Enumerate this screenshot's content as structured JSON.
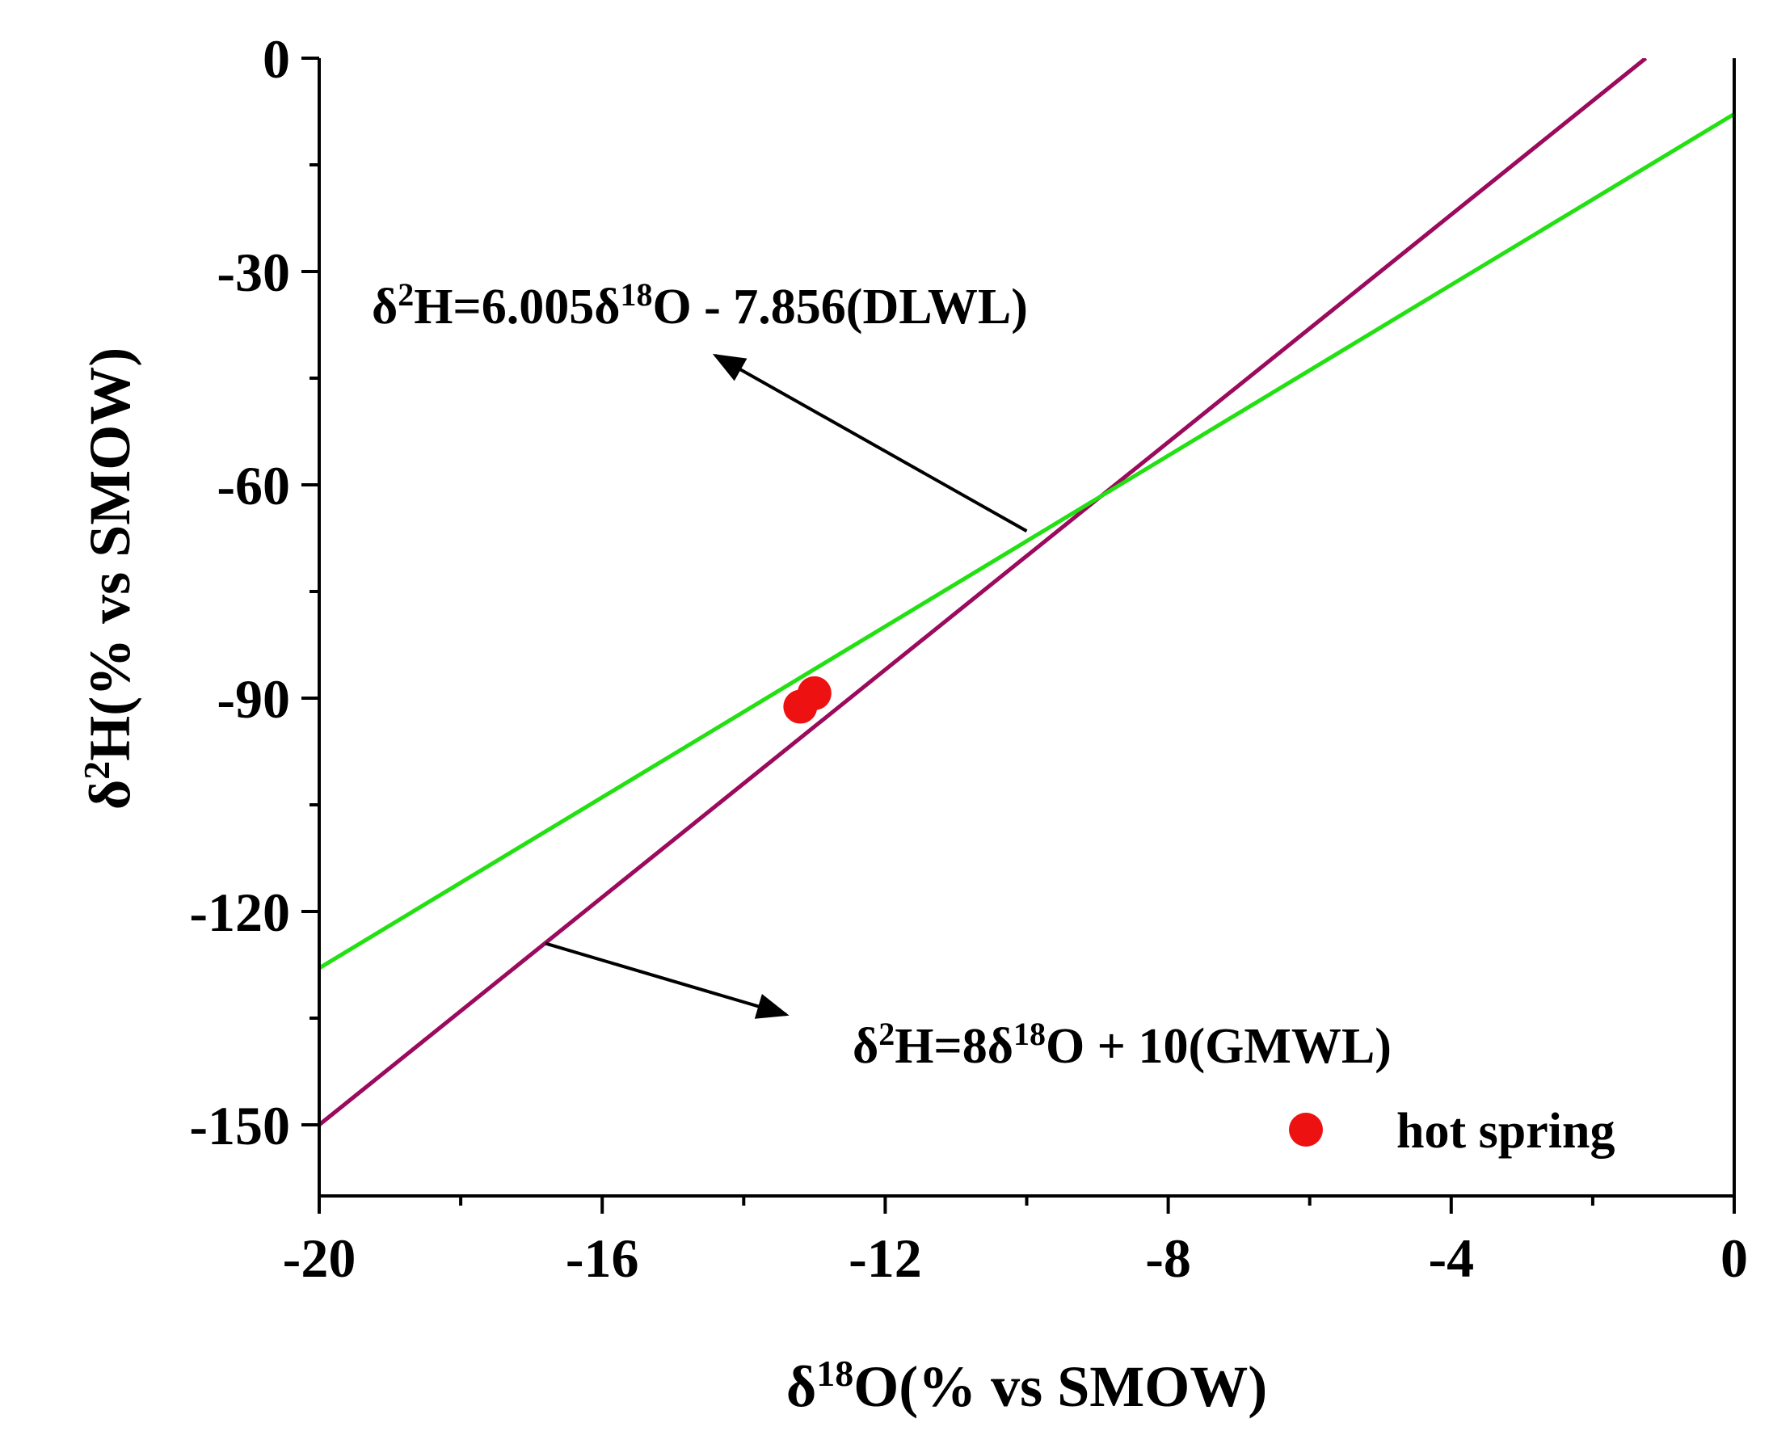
{
  "chart_data": {
    "type": "line",
    "x": {
      "label_main": "δ",
      "label_sup": "18",
      "label_rest": "O(% vs SMOW)",
      "range": [
        -20,
        0
      ],
      "ticks": [
        -20,
        -16,
        -12,
        -8,
        -4,
        0
      ],
      "tick_labels": [
        "-20",
        "-16",
        "-12",
        "-8",
        "-4",
        "0"
      ]
    },
    "y": {
      "label_main": "δ",
      "label_sup": "2",
      "label_rest": "H(% vs SMOW)",
      "range": [
        -160,
        0
      ],
      "ticks": [
        0,
        -30,
        -60,
        -90,
        -120,
        -150
      ],
      "tick_labels": [
        "0",
        "-30",
        "-60",
        "-90",
        "-120",
        "-150"
      ]
    },
    "grid": false,
    "series": [
      {
        "name": "GMWL",
        "slope": 8,
        "intercept": 10,
        "color": "#9b0a5c",
        "x": [
          -20,
          -1.25
        ],
        "y": [
          -150,
          0
        ]
      },
      {
        "name": "DLWL",
        "slope": 6.005,
        "intercept": -7.856,
        "color": "#22e012",
        "x": [
          -20,
          0
        ],
        "y": [
          -127.96,
          -7.856
        ]
      },
      {
        "name": "hot spring",
        "type": "scatter",
        "color": "#ee1111",
        "points": [
          [
            -13.2,
            -91.2
          ],
          [
            -13.0,
            -89.3
          ]
        ]
      }
    ],
    "annotations": [
      {
        "id": "dlwl",
        "parts": [
          "δ",
          "2",
          "H=6.005δ",
          "18",
          "O - 7.856(DLWL)"
        ],
        "arrow_from": [
          -10.0,
          -66.5
        ],
        "arrow_to": [
          -14.4,
          -41.8
        ]
      },
      {
        "id": "gmwl",
        "parts": [
          "δ",
          "2",
          "H=8δ",
          "18",
          "O + 10(GMWL)"
        ],
        "arrow_from": [
          -16.8,
          -124.5
        ],
        "arrow_to": [
          -13.4,
          -134.5
        ]
      }
    ],
    "legend": {
      "position": "bottom-right",
      "label": "hot spring",
      "color": "#ee1111"
    }
  }
}
